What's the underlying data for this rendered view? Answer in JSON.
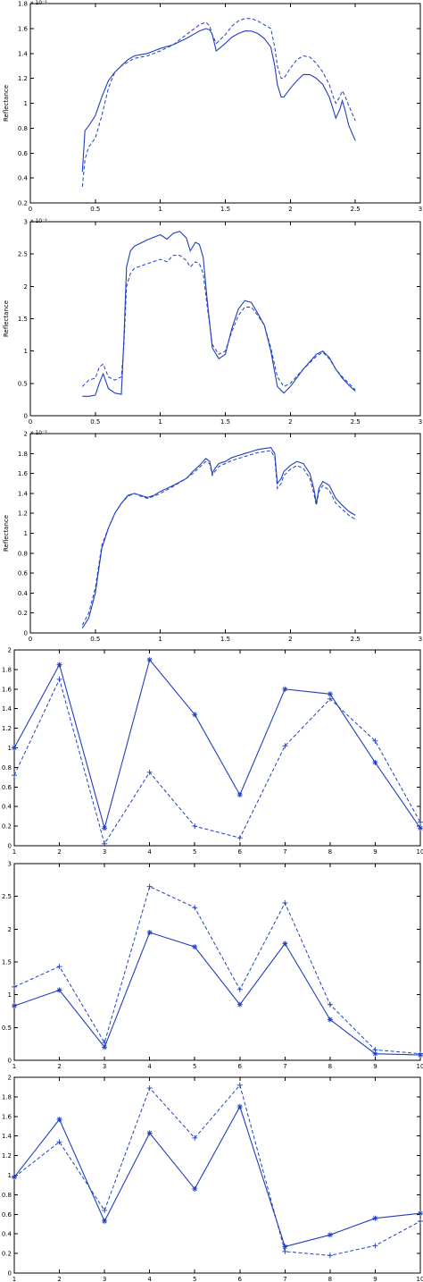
{
  "chart_data": [
    {
      "type": "line",
      "ylabel": "Reflectance",
      "y_exponent_label": "x 10⁻³",
      "xlim": [
        0,
        3
      ],
      "ylim": [
        0.2,
        1.8
      ],
      "xticks": [
        0,
        0.5,
        1,
        1.5,
        2,
        2.5,
        3
      ],
      "xtick_labels": [
        "0",
        "0.5",
        "1",
        "1.5",
        "2",
        "2.5",
        "3"
      ],
      "yticks": [
        0.2,
        0.4,
        0.6,
        0.8,
        1,
        1.2,
        1.4,
        1.6,
        1.8
      ],
      "ytick_labels": [
        "0.2",
        "0.4",
        "0.6",
        "0.8",
        "1",
        "1.2",
        "1.4",
        "1.6",
        "1.8"
      ],
      "series": [
        {
          "style": "solid",
          "x": [
            0.4,
            0.42,
            0.45,
            0.5,
            0.55,
            0.6,
            0.65,
            0.7,
            0.75,
            0.8,
            0.85,
            0.9,
            0.95,
            1.0,
            1.1,
            1.2,
            1.3,
            1.35,
            1.38,
            1.4,
            1.43,
            1.5,
            1.55,
            1.6,
            1.65,
            1.7,
            1.75,
            1.8,
            1.85,
            1.88,
            1.9,
            1.93,
            1.95,
            2.0,
            2.05,
            2.1,
            2.15,
            2.2,
            2.25,
            2.3,
            2.33,
            2.35,
            2.38,
            2.4,
            2.42,
            2.45,
            2.5
          ],
          "y": [
            0.45,
            0.78,
            0.82,
            0.9,
            1.05,
            1.18,
            1.25,
            1.3,
            1.35,
            1.38,
            1.39,
            1.4,
            1.42,
            1.44,
            1.47,
            1.52,
            1.58,
            1.6,
            1.59,
            1.55,
            1.42,
            1.48,
            1.53,
            1.56,
            1.58,
            1.58,
            1.56,
            1.52,
            1.45,
            1.3,
            1.15,
            1.05,
            1.05,
            1.12,
            1.18,
            1.23,
            1.23,
            1.2,
            1.15,
            1.05,
            0.95,
            0.88,
            0.95,
            1.02,
            0.95,
            0.82,
            0.7
          ]
        },
        {
          "style": "dashed",
          "x": [
            0.4,
            0.42,
            0.45,
            0.5,
            0.55,
            0.6,
            0.65,
            0.7,
            0.75,
            0.8,
            0.85,
            0.9,
            0.95,
            1.0,
            1.1,
            1.2,
            1.3,
            1.35,
            1.38,
            1.4,
            1.43,
            1.5,
            1.55,
            1.6,
            1.65,
            1.7,
            1.75,
            1.8,
            1.85,
            1.88,
            1.9,
            1.93,
            1.95,
            2.0,
            2.05,
            2.1,
            2.15,
            2.2,
            2.25,
            2.3,
            2.33,
            2.35,
            2.38,
            2.4,
            2.42,
            2.45,
            2.5
          ],
          "y": [
            0.33,
            0.55,
            0.65,
            0.72,
            0.9,
            1.12,
            1.25,
            1.3,
            1.33,
            1.36,
            1.37,
            1.38,
            1.4,
            1.42,
            1.47,
            1.55,
            1.63,
            1.65,
            1.62,
            1.55,
            1.48,
            1.55,
            1.62,
            1.66,
            1.68,
            1.68,
            1.66,
            1.63,
            1.6,
            1.45,
            1.3,
            1.2,
            1.2,
            1.28,
            1.35,
            1.38,
            1.37,
            1.32,
            1.25,
            1.15,
            1.05,
            1.0,
            1.05,
            1.1,
            1.06,
            0.98,
            0.86
          ]
        }
      ]
    },
    {
      "type": "line",
      "ylabel": "Reflectance",
      "y_exponent_label": "x 10⁻³",
      "xlim": [
        0,
        3
      ],
      "ylim": [
        0,
        3
      ],
      "xticks": [
        0,
        0.5,
        1,
        1.5,
        2,
        2.5,
        3
      ],
      "xtick_labels": [
        "0",
        "0.5",
        "1",
        "1.5",
        "2",
        "2.5",
        "3"
      ],
      "yticks": [
        0,
        0.5,
        1,
        1.5,
        2,
        2.5,
        3
      ],
      "ytick_labels": [
        "0",
        "0.5",
        "1",
        "1.5",
        "2",
        "2.5",
        "3"
      ],
      "series": [
        {
          "style": "solid",
          "x": [
            0.4,
            0.45,
            0.5,
            0.53,
            0.56,
            0.6,
            0.65,
            0.7,
            0.72,
            0.74,
            0.77,
            0.8,
            0.9,
            1.0,
            1.05,
            1.1,
            1.15,
            1.2,
            1.23,
            1.27,
            1.3,
            1.33,
            1.36,
            1.4,
            1.45,
            1.5,
            1.55,
            1.6,
            1.65,
            1.7,
            1.75,
            1.8,
            1.85,
            1.9,
            1.95,
            2.0,
            2.1,
            2.2,
            2.25,
            2.3,
            2.35,
            2.4,
            2.45,
            2.5
          ],
          "y": [
            0.3,
            0.3,
            0.32,
            0.5,
            0.65,
            0.42,
            0.35,
            0.33,
            1.2,
            2.3,
            2.55,
            2.62,
            2.72,
            2.8,
            2.73,
            2.82,
            2.85,
            2.75,
            2.55,
            2.68,
            2.65,
            2.45,
            1.8,
            1.05,
            0.88,
            0.95,
            1.35,
            1.65,
            1.78,
            1.75,
            1.58,
            1.4,
            1.0,
            0.45,
            0.35,
            0.45,
            0.72,
            0.95,
            1.0,
            0.9,
            0.72,
            0.58,
            0.47,
            0.38
          ]
        },
        {
          "style": "dashed",
          "x": [
            0.4,
            0.45,
            0.5,
            0.53,
            0.56,
            0.6,
            0.65,
            0.7,
            0.72,
            0.74,
            0.77,
            0.8,
            0.9,
            1.0,
            1.05,
            1.1,
            1.15,
            1.2,
            1.23,
            1.27,
            1.3,
            1.33,
            1.36,
            1.4,
            1.45,
            1.5,
            1.55,
            1.6,
            1.65,
            1.7,
            1.75,
            1.8,
            1.85,
            1.9,
            1.95,
            2.0,
            2.1,
            2.2,
            2.25,
            2.3,
            2.35,
            2.4,
            2.45,
            2.5
          ],
          "y": [
            0.45,
            0.55,
            0.58,
            0.75,
            0.8,
            0.6,
            0.55,
            0.6,
            1.1,
            2.0,
            2.2,
            2.28,
            2.35,
            2.42,
            2.38,
            2.48,
            2.48,
            2.4,
            2.3,
            2.38,
            2.35,
            2.2,
            1.7,
            1.1,
            0.95,
            1.0,
            1.3,
            1.55,
            1.68,
            1.68,
            1.55,
            1.4,
            1.05,
            0.6,
            0.45,
            0.5,
            0.72,
            0.92,
            0.98,
            0.88,
            0.72,
            0.6,
            0.5,
            0.4
          ]
        }
      ]
    },
    {
      "type": "line",
      "ylabel": "Reflectance",
      "y_exponent_label": "x 10⁻³",
      "xlim": [
        0,
        3
      ],
      "ylim": [
        0,
        2
      ],
      "xticks": [
        0,
        0.5,
        1,
        1.5,
        2,
        2.5,
        3
      ],
      "xtick_labels": [
        "0",
        "0.5",
        "1",
        "1.5",
        "2",
        "2.5",
        "3"
      ],
      "yticks": [
        0,
        0.2,
        0.4,
        0.6,
        0.8,
        1,
        1.2,
        1.4,
        1.6,
        1.8,
        2
      ],
      "ytick_labels": [
        "0",
        "0.2",
        "0.4",
        "0.6",
        "0.8",
        "1",
        "1.2",
        "1.4",
        "1.6",
        "1.8",
        "2"
      ],
      "series": [
        {
          "style": "solid",
          "x": [
            0.4,
            0.45,
            0.5,
            0.55,
            0.6,
            0.65,
            0.7,
            0.75,
            0.8,
            0.85,
            0.9,
            0.95,
            1.0,
            1.1,
            1.2,
            1.25,
            1.3,
            1.35,
            1.38,
            1.4,
            1.42,
            1.45,
            1.5,
            1.55,
            1.6,
            1.65,
            1.7,
            1.75,
            1.8,
            1.85,
            1.88,
            1.9,
            1.93,
            1.95,
            2.0,
            2.05,
            2.1,
            2.15,
            2.18,
            2.2,
            2.22,
            2.25,
            2.3,
            2.35,
            2.4,
            2.45,
            2.5
          ],
          "y": [
            0.05,
            0.15,
            0.4,
            0.85,
            1.05,
            1.2,
            1.3,
            1.38,
            1.4,
            1.38,
            1.36,
            1.38,
            1.42,
            1.48,
            1.55,
            1.62,
            1.68,
            1.75,
            1.72,
            1.6,
            1.65,
            1.7,
            1.72,
            1.76,
            1.78,
            1.8,
            1.82,
            1.84,
            1.85,
            1.86,
            1.8,
            1.5,
            1.55,
            1.62,
            1.68,
            1.72,
            1.7,
            1.6,
            1.45,
            1.3,
            1.45,
            1.52,
            1.48,
            1.35,
            1.28,
            1.22,
            1.18
          ]
        },
        {
          "style": "dashed",
          "x": [
            0.4,
            0.45,
            0.5,
            0.55,
            0.6,
            0.65,
            0.7,
            0.75,
            0.8,
            0.85,
            0.9,
            0.95,
            1.0,
            1.1,
            1.2,
            1.25,
            1.3,
            1.35,
            1.38,
            1.4,
            1.42,
            1.45,
            1.5,
            1.55,
            1.6,
            1.65,
            1.7,
            1.75,
            1.8,
            1.85,
            1.88,
            1.9,
            1.93,
            1.95,
            2.0,
            2.05,
            2.1,
            2.15,
            2.18,
            2.2,
            2.22,
            2.25,
            2.3,
            2.35,
            2.4,
            2.45,
            2.5
          ],
          "y": [
            0.08,
            0.2,
            0.45,
            0.88,
            1.05,
            1.2,
            1.3,
            1.37,
            1.4,
            1.37,
            1.35,
            1.37,
            1.4,
            1.47,
            1.55,
            1.6,
            1.66,
            1.72,
            1.7,
            1.58,
            1.62,
            1.67,
            1.7,
            1.73,
            1.75,
            1.77,
            1.79,
            1.81,
            1.82,
            1.83,
            1.76,
            1.45,
            1.5,
            1.58,
            1.64,
            1.68,
            1.65,
            1.55,
            1.4,
            1.28,
            1.42,
            1.48,
            1.43,
            1.3,
            1.24,
            1.18,
            1.14
          ]
        }
      ]
    },
    {
      "type": "line",
      "xlim": [
        1,
        10
      ],
      "ylim": [
        0,
        2
      ],
      "xticks": [
        1,
        2,
        3,
        4,
        5,
        6,
        7,
        8,
        9,
        10
      ],
      "xtick_labels": [
        "1",
        "2",
        "3",
        "4",
        "5",
        "6",
        "7",
        "8",
        "9",
        "10"
      ],
      "yticks": [
        0,
        0.2,
        0.4,
        0.6,
        0.8,
        1,
        1.2,
        1.4,
        1.6,
        1.8,
        2
      ],
      "ytick_labels": [
        "0",
        "0.2",
        "0.4",
        "0.6",
        "0.8",
        "1",
        "1.2",
        "1.4",
        "1.6",
        "1.8",
        "2"
      ],
      "series": [
        {
          "style": "solid",
          "marker": "*",
          "x": [
            1,
            2,
            3,
            4,
            5,
            6,
            7,
            8,
            9,
            10
          ],
          "y": [
            1.0,
            1.85,
            0.18,
            1.9,
            1.34,
            0.52,
            1.6,
            1.55,
            0.85,
            0.18
          ]
        },
        {
          "style": "dashed",
          "marker": "+",
          "x": [
            1,
            2,
            3,
            4,
            5,
            6,
            7,
            8,
            9,
            10
          ],
          "y": [
            0.72,
            1.7,
            0.02,
            0.75,
            0.2,
            0.08,
            1.02,
            1.5,
            1.07,
            0.24
          ]
        }
      ]
    },
    {
      "type": "line",
      "xlim": [
        1,
        10
      ],
      "ylim": [
        0,
        3
      ],
      "xticks": [
        1,
        2,
        3,
        4,
        5,
        6,
        7,
        8,
        9,
        10
      ],
      "xtick_labels": [
        "1",
        "2",
        "3",
        "4",
        "5",
        "6",
        "7",
        "8",
        "9",
        "10"
      ],
      "yticks": [
        0,
        0.5,
        1,
        1.5,
        2,
        2.5,
        3
      ],
      "ytick_labels": [
        "0",
        "0.5",
        "1",
        "1.5",
        "2",
        "2.5",
        "3"
      ],
      "series": [
        {
          "style": "solid",
          "marker": "*",
          "x": [
            1,
            2,
            3,
            4,
            5,
            6,
            7,
            8,
            9,
            10
          ],
          "y": [
            0.83,
            1.07,
            0.2,
            1.95,
            1.73,
            0.85,
            1.78,
            0.62,
            0.1,
            0.08
          ]
        },
        {
          "style": "dashed",
          "marker": "+",
          "x": [
            1,
            2,
            3,
            4,
            5,
            6,
            7,
            8,
            9,
            10
          ],
          "y": [
            1.12,
            1.43,
            0.27,
            2.65,
            2.33,
            1.08,
            2.4,
            0.85,
            0.16,
            0.1
          ]
        }
      ]
    },
    {
      "type": "line",
      "xlim": [
        1,
        10
      ],
      "ylim": [
        0,
        2
      ],
      "xticks": [
        1,
        2,
        3,
        4,
        5,
        6,
        7,
        8,
        9,
        10
      ],
      "xtick_labels": [
        "1",
        "2",
        "3",
        "4",
        "5",
        "6",
        "7",
        "8",
        "9",
        "10"
      ],
      "yticks": [
        0,
        0.2,
        0.4,
        0.6,
        0.8,
        1,
        1.2,
        1.4,
        1.6,
        1.8,
        2
      ],
      "ytick_labels": [
        "0",
        "0.2",
        "0.4",
        "0.6",
        "0.8",
        "1",
        "1.2",
        "1.4",
        "1.6",
        "1.8",
        "2"
      ],
      "series": [
        {
          "style": "solid",
          "marker": "*",
          "x": [
            1,
            2,
            3,
            4,
            5,
            6,
            7,
            8,
            9,
            10
          ],
          "y": [
            0.98,
            1.57,
            0.53,
            1.43,
            0.86,
            1.7,
            0.27,
            0.39,
            0.56,
            0.61
          ]
        },
        {
          "style": "dashed",
          "marker": "+",
          "x": [
            1,
            2,
            3,
            4,
            5,
            6,
            7,
            8,
            9,
            10
          ],
          "y": [
            0.98,
            1.34,
            0.64,
            1.89,
            1.38,
            1.92,
            0.22,
            0.18,
            0.28,
            0.53
          ]
        }
      ]
    }
  ]
}
